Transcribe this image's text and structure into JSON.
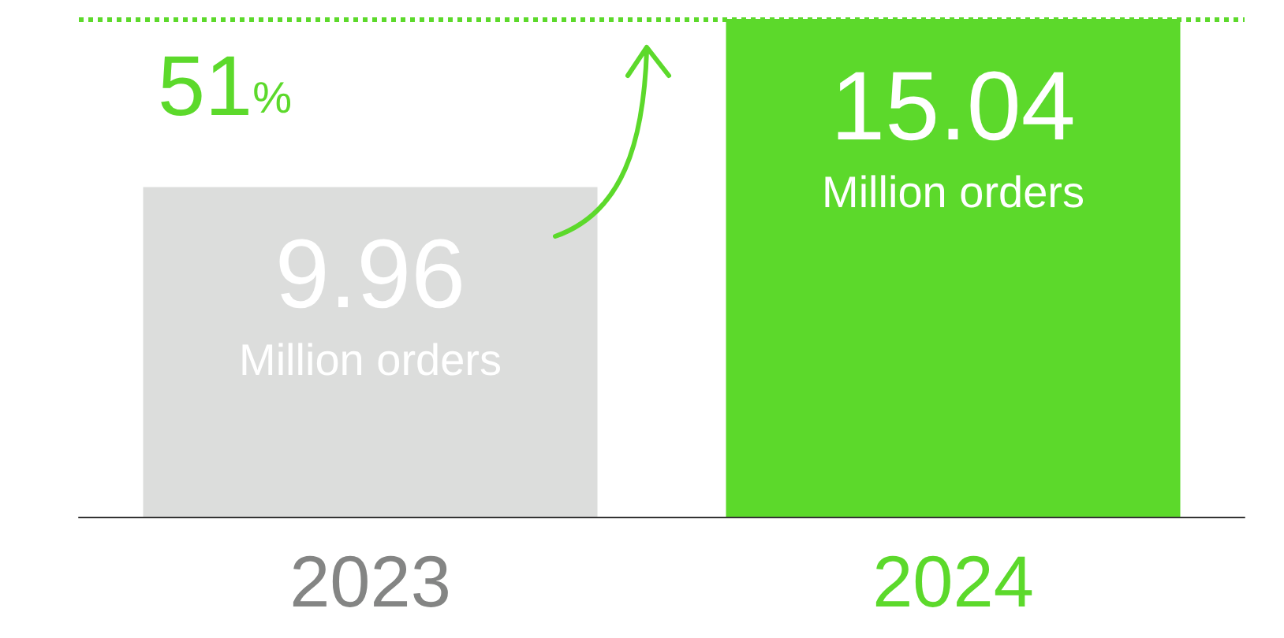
{
  "chart_data": {
    "type": "bar",
    "categories": [
      "2023",
      "2024"
    ],
    "values": [
      9.96,
      15.04
    ],
    "colors": [
      "#dcdddc",
      "#5cd92b"
    ],
    "value_labels": [
      "9.96\nMillion orders",
      "15.04\nMillion orders"
    ],
    "annotations": [
      "51%"
    ],
    "ref_lines": [
      {
        "axis": "y",
        "value": 15.04,
        "color": "#5cd92b",
        "line_style": "dotted"
      }
    ],
    "legend": false
  }
}
